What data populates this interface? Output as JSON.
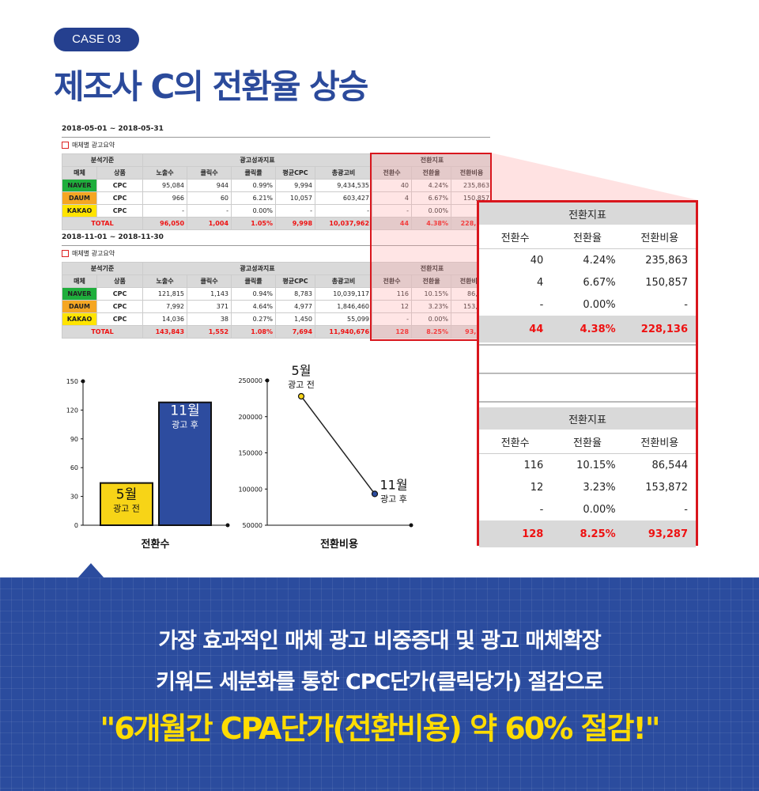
{
  "badge": "CASE 03",
  "title": "제조사 C의 전환율 상승",
  "reports": [
    {
      "period": "2018-05-01 ~ 2018-05-31",
      "section": "매체별 광고요약",
      "groups": [
        "분석기준",
        "광고성과지표",
        "전환지표"
      ],
      "columns": [
        "매체",
        "상품",
        "노출수",
        "클릭수",
        "클릭률",
        "평균CPC",
        "총광고비",
        "전환수",
        "전환율",
        "전환비용"
      ],
      "rows": [
        [
          "NAVER",
          "CPC",
          "95,084",
          "944",
          "0.99%",
          "9,994",
          "9,434,535",
          "40",
          "4.24%",
          "235,863"
        ],
        [
          "DAUM",
          "CPC",
          "966",
          "60",
          "6.21%",
          "10,057",
          "603,427",
          "4",
          "6.67%",
          "150,857"
        ],
        [
          "KAKAO",
          "CPC",
          "-",
          "-",
          "0.00%",
          "-",
          "-",
          "-",
          "0.00%",
          "-"
        ]
      ],
      "total": [
        "TOTAL",
        "96,050",
        "1,004",
        "1.05%",
        "9,998",
        "10,037,962",
        "44",
        "4.38%",
        "228,136"
      ]
    },
    {
      "period": "2018-11-01 ~ 2018-11-30",
      "section": "매체별 광고요약",
      "groups": [
        "분석기준",
        "광고성과지표",
        "전환지표"
      ],
      "columns": [
        "매체",
        "상품",
        "노출수",
        "클릭수",
        "클릭률",
        "평균CPC",
        "총광고비",
        "전환수",
        "전환율",
        "전환비용"
      ],
      "rows": [
        [
          "NAVER",
          "CPC",
          "121,815",
          "1,143",
          "0.94%",
          "8,783",
          "10,039,117",
          "116",
          "10.15%",
          "86,544"
        ],
        [
          "DAUM",
          "CPC",
          "7,992",
          "371",
          "4.64%",
          "4,977",
          "1,846,460",
          "12",
          "3.23%",
          "153,872"
        ],
        [
          "KAKAO",
          "CPC",
          "14,036",
          "38",
          "0.27%",
          "1,450",
          "55,099",
          "-",
          "0.00%",
          "-"
        ]
      ],
      "total": [
        "TOTAL",
        "143,843",
        "1,552",
        "1.08%",
        "7,694",
        "11,940,676",
        "128",
        "8.25%",
        "93,287"
      ]
    }
  ],
  "chart_data": [
    {
      "type": "bar",
      "xlabel": "전환수",
      "categories": [
        "5월",
        "11월"
      ],
      "category_notes": [
        "광고 전",
        "광고 후"
      ],
      "values": [
        44,
        128
      ],
      "colors": [
        "#f7d417",
        "#2d4c9f"
      ],
      "ylim": [
        0,
        150
      ],
      "yticks": [
        0,
        30,
        60,
        90,
        120,
        150
      ]
    },
    {
      "type": "line",
      "xlabel": "전환비용",
      "categories": [
        "5월",
        "11월"
      ],
      "category_notes": [
        "광고 전",
        "광고 후"
      ],
      "values": [
        228136,
        93287
      ],
      "colors": [
        "#f7d417",
        "#2d4c9f"
      ],
      "color": "#222222",
      "ylim": [
        50000,
        250000
      ],
      "yticks": [
        50000,
        100000,
        150000,
        200000,
        250000
      ]
    }
  ],
  "banner": {
    "lines": [
      "가장 효과적인 매체 광고 비중증대 및 광고 매체확장",
      "키워드 세분화를 통한 CPC단가(클릭당가) 절감으로"
    ],
    "highlight": "\"6개월간 CPA단가(전환비용) 약 60% 절감!\""
  }
}
